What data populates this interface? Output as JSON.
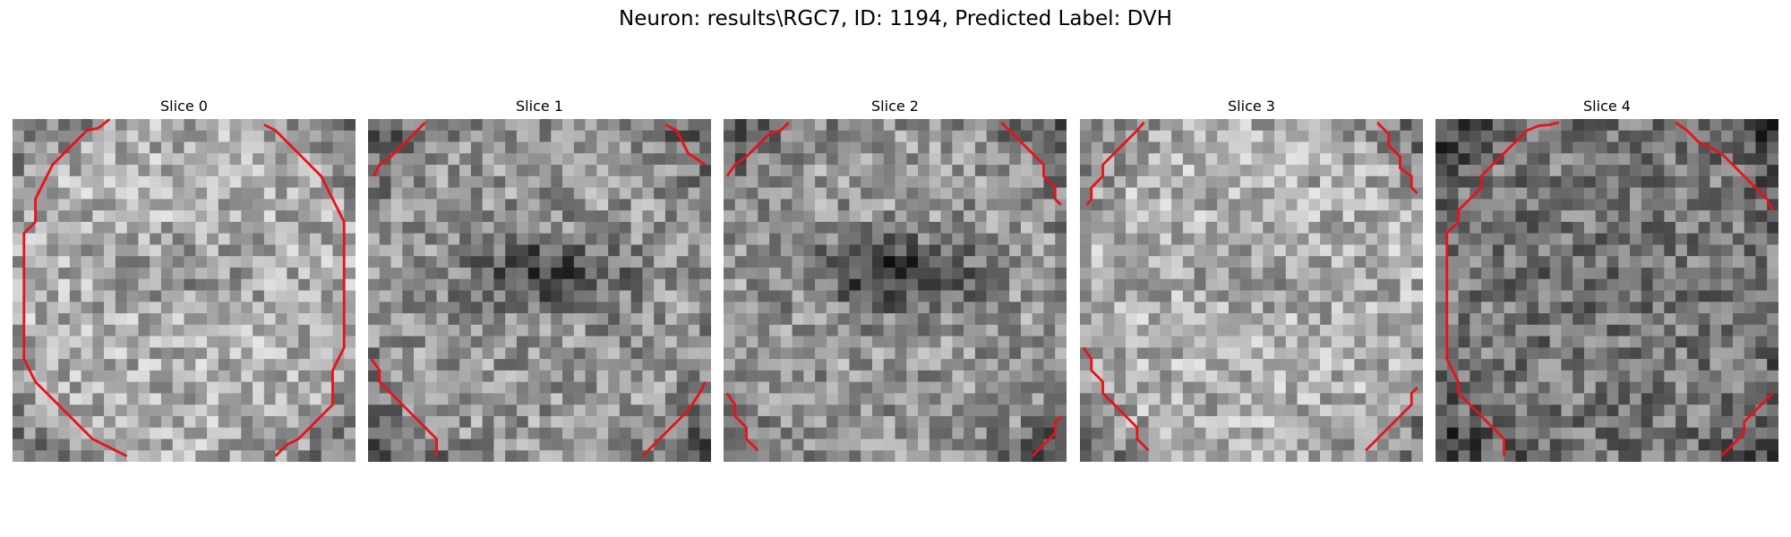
{
  "figure": {
    "title": "Neuron: results\\RGC7, ID: 1194, Predicted Label: DVH"
  },
  "colors": {
    "contour": "#e8121a",
    "background": "#ffffff"
  },
  "slices": [
    {
      "label": "Slice 0",
      "texture": "bright",
      "dark_center": 0.15
    },
    {
      "label": "Slice 1",
      "texture": "medium",
      "dark_center": 0.55
    },
    {
      "label": "Slice 2",
      "texture": "medium",
      "dark_center": 0.6
    },
    {
      "label": "Slice 3",
      "texture": "bright",
      "dark_center": 0.1
    },
    {
      "label": "Slice 4",
      "texture": "dark",
      "dark_center": 0.05
    }
  ]
}
